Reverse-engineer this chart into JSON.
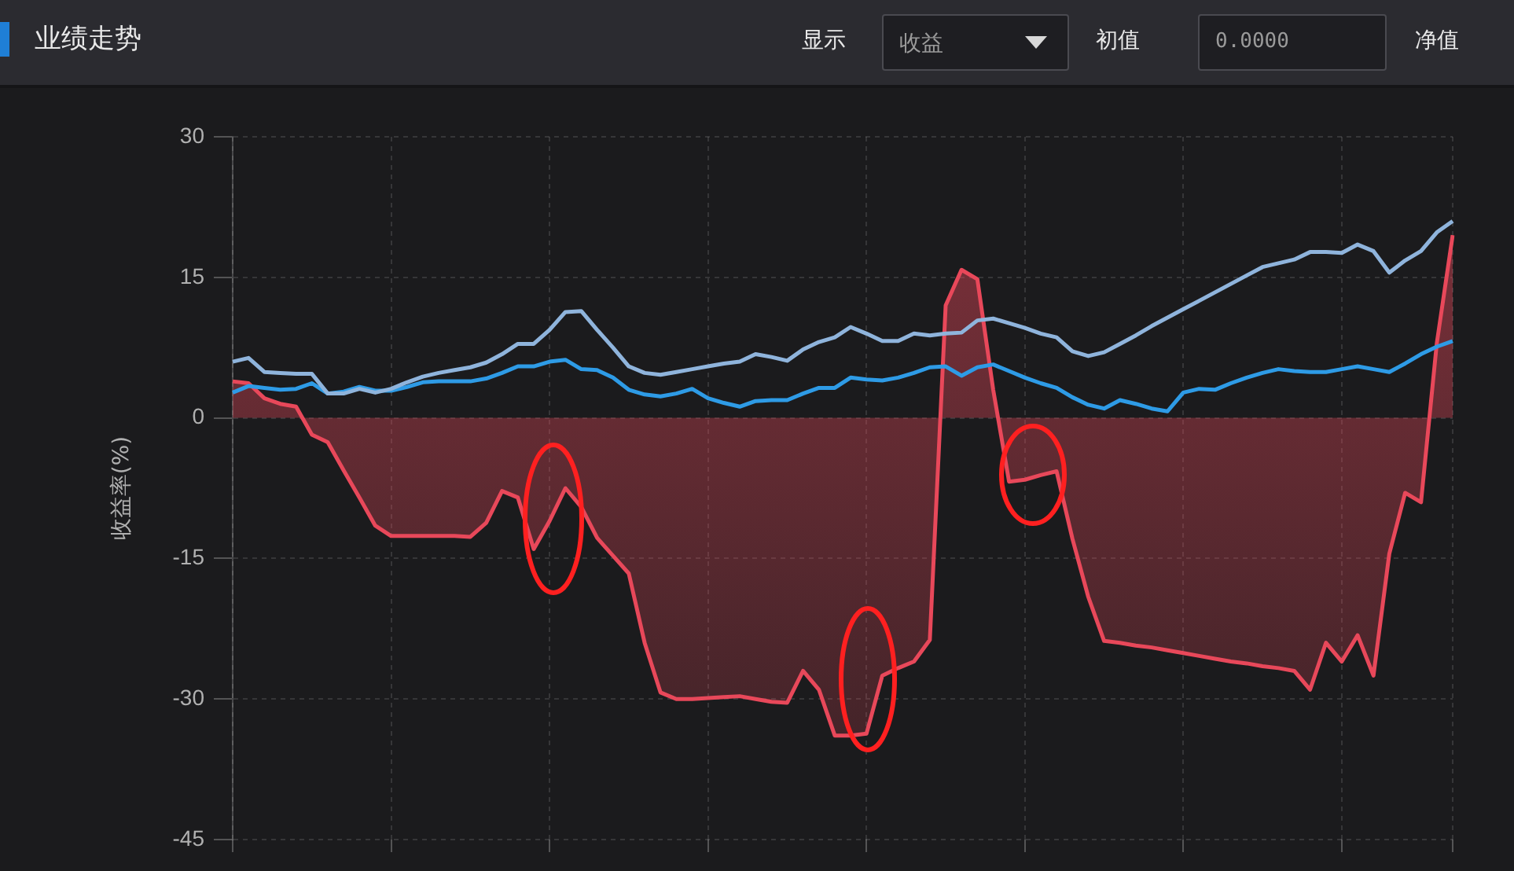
{
  "chart_data": {
    "type": "line",
    "title": "业绩走势",
    "ylabel": "收益率(%)",
    "annotations": [
      "显示",
      "收益",
      "初值",
      "0.0000",
      "净值"
    ],
    "categories": [
      null,
      null,
      null,
      null,
      null,
      null,
      null,
      null,
      null,
      null,
      null,
      null,
      null,
      null,
      null,
      null,
      null,
      null,
      null,
      null,
      null,
      null,
      null,
      null,
      null,
      null,
      null,
      null,
      null,
      null,
      null,
      null,
      null,
      null,
      null,
      null,
      null,
      null,
      null,
      null,
      null,
      null,
      null,
      null,
      null,
      null,
      null,
      null,
      null,
      null,
      null,
      null,
      null,
      null,
      null,
      null,
      null,
      null,
      null,
      null,
      null,
      null,
      null,
      null,
      null,
      null,
      null,
      null,
      null,
      null,
      null,
      null,
      null,
      null,
      null,
      null,
      null,
      null
    ],
    "series": [
      {
        "type": "area",
        "color": "#e8485a",
        "values": [
          3.9,
          3.7,
          2.1,
          1.5,
          1.2,
          -1.8,
          -2.6,
          -5.6,
          -8.5,
          -11.5,
          -12.6,
          -12.6,
          -12.6,
          -12.6,
          -12.6,
          -12.7,
          -11.2,
          -7.8,
          -8.5,
          -14.0,
          -11.0,
          -7.5,
          -9.5,
          -12.8,
          -14.7,
          -16.6,
          -24.0,
          -29.3,
          -30.0,
          -30.0,
          -29.9,
          -29.8,
          -29.7,
          -30.0,
          -30.3,
          -30.4,
          -27.0,
          -29.0,
          -33.9,
          -33.9,
          -33.7,
          -27.5,
          -26.7,
          -26.0,
          -23.7,
          12.0,
          15.8,
          14.8,
          3.0,
          -6.8,
          -6.6,
          -6.1,
          -5.7,
          -12.9,
          -19.1,
          -23.8,
          -24.0,
          -24.3,
          -24.5,
          -24.8,
          -25.1,
          -25.4,
          -25.7,
          -26.0,
          -26.2,
          -26.5,
          -26.7,
          -27.0,
          -29.0,
          -24.0,
          -26.0,
          -23.2,
          -27.5,
          -14.5,
          -8.0,
          -9.0,
          8.0,
          19.5
        ]
      },
      {
        "color": "#8fb4dc",
        "values": [
          6.0,
          6.4,
          4.9,
          4.8,
          4.7,
          4.7,
          2.6,
          2.6,
          3.1,
          2.7,
          3.1,
          3.8,
          4.4,
          4.8,
          5.1,
          5.4,
          5.9,
          6.8,
          7.9,
          7.9,
          9.4,
          11.3,
          11.4,
          9.4,
          7.5,
          5.5,
          4.8,
          4.6,
          4.9,
          5.2,
          5.5,
          5.8,
          6.0,
          6.8,
          6.5,
          6.1,
          7.3,
          8.1,
          8.6,
          9.7,
          9.0,
          8.2,
          8.2,
          9.0,
          8.8,
          9.0,
          9.1,
          10.4,
          10.6,
          10.1,
          9.6,
          9.0,
          8.6,
          7.1,
          6.6,
          7.0,
          7.9,
          8.8,
          9.8,
          10.7,
          11.6,
          12.5,
          13.4,
          14.3,
          15.2,
          16.1,
          16.5,
          16.9,
          17.7,
          17.7,
          17.6,
          18.5,
          17.8,
          15.5,
          16.8,
          17.8,
          19.8,
          21.0
        ]
      },
      {
        "color": "#2e9be6",
        "values": [
          2.7,
          3.4,
          3.2,
          3.0,
          3.1,
          3.7,
          2.6,
          2.8,
          3.3,
          2.9,
          2.9,
          3.3,
          3.8,
          3.9,
          3.9,
          3.9,
          4.2,
          4.8,
          5.5,
          5.5,
          6.0,
          6.2,
          5.2,
          5.1,
          4.3,
          3.0,
          2.5,
          2.3,
          2.6,
          3.1,
          2.1,
          1.6,
          1.2,
          1.8,
          1.9,
          1.9,
          2.6,
          3.2,
          3.2,
          4.3,
          4.1,
          4.0,
          4.3,
          4.8,
          5.4,
          5.5,
          4.5,
          5.4,
          5.7,
          5.0,
          4.3,
          3.7,
          3.2,
          2.2,
          1.4,
          1.0,
          1.9,
          1.5,
          1.0,
          0.7,
          2.7,
          3.1,
          3.0,
          3.7,
          4.3,
          4.8,
          5.2,
          5.0,
          4.9,
          4.9,
          5.2,
          5.5,
          5.2,
          4.9,
          5.8,
          6.8,
          7.6,
          8.2
        ]
      }
    ],
    "ylim": [
      -45,
      30
    ],
    "yticks": [
      30,
      15,
      0,
      -15,
      -30,
      -45
    ],
    "grid": true,
    "legend": false,
    "tick_labels": "y",
    "marker": "none",
    "line_style": "solid"
  }
}
